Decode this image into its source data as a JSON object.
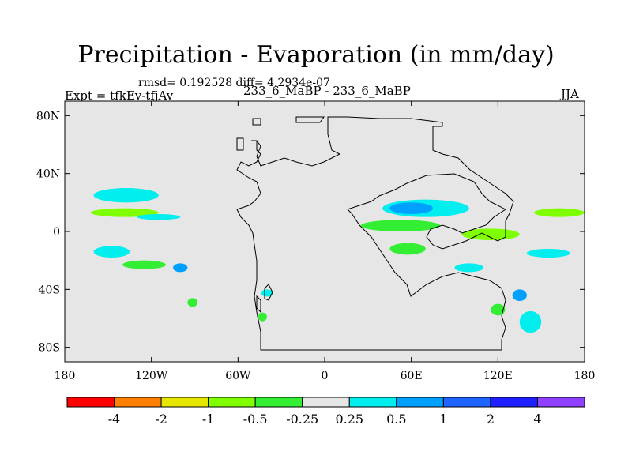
{
  "header": {
    "title": "Precipitation - Evaporation (in mm/day)",
    "stats": "rmsd= 0.192528 diff= 4.2934e-07",
    "left_label": "Expt = tfkEv-tfjAv",
    "center_label": "233_6_MaBP - 233_6_MaBP",
    "right_label": "JJA"
  },
  "chart_data": {
    "type": "heatmap",
    "title": "Precipitation - Evaporation (in mm/day)",
    "x_axis": {
      "range": [
        -180,
        180
      ],
      "ticks": [
        -180,
        -120,
        -60,
        0,
        60,
        120,
        180
      ],
      "tick_labels": [
        "180",
        "120W",
        "60W",
        "0",
        "60E",
        "120E",
        "180"
      ]
    },
    "y_axis": {
      "range": [
        -90,
        90
      ],
      "ticks": [
        80,
        40,
        0,
        -40,
        -80
      ],
      "tick_labels": [
        "80N",
        "40N",
        "0",
        "40S",
        "80S"
      ]
    },
    "background_color": "#e6e6e6",
    "colorbar": {
      "levels": [
        "-4",
        "-2",
        "-1",
        "-0.5",
        "-0.25",
        "0.25",
        "0.5",
        "1",
        "2",
        "4"
      ],
      "colors": [
        "#ff0000",
        "#ff8000",
        "#e6e600",
        "#80ff00",
        "#33ee33",
        "#e6e6e6",
        "#00eeee",
        "#00a0ff",
        "#1e64ff",
        "#2020ff",
        "#9040ff"
      ]
    },
    "regions": [
      {
        "level": "#80ff00",
        "lon": [
          -162,
          -115
        ],
        "lat": [
          10,
          16
        ]
      },
      {
        "level": "#00eeee",
        "lon": [
          -160,
          -115
        ],
        "lat": [
          20,
          30
        ]
      },
      {
        "level": "#00eeee",
        "lon": [
          -130,
          -100
        ],
        "lat": [
          8,
          12
        ]
      },
      {
        "level": "#33ee33",
        "lon": [
          -140,
          -110
        ],
        "lat": [
          -26,
          -20
        ]
      },
      {
        "level": "#00eeee",
        "lon": [
          -160,
          -135
        ],
        "lat": [
          -18,
          -10
        ]
      },
      {
        "level": "#00a0ff",
        "lon": [
          -105,
          -95
        ],
        "lat": [
          -28,
          -22
        ]
      },
      {
        "level": "#33ee33",
        "lon": [
          -95,
          -88
        ],
        "lat": [
          -52,
          -46
        ]
      },
      {
        "level": "#00eeee",
        "lon": [
          -44,
          -36
        ],
        "lat": [
          -45,
          -40
        ]
      },
      {
        "level": "#33ee33",
        "lon": [
          -46,
          -40
        ],
        "lat": [
          -62,
          -56
        ]
      },
      {
        "level": "#00eeee",
        "lon": [
          40,
          100
        ],
        "lat": [
          10,
          22
        ]
      },
      {
        "level": "#00a0ff",
        "lon": [
          45,
          75
        ],
        "lat": [
          12,
          20
        ]
      },
      {
        "level": "#33ee33",
        "lon": [
          25,
          80
        ],
        "lat": [
          0,
          8
        ]
      },
      {
        "level": "#33ee33",
        "lon": [
          45,
          70
        ],
        "lat": [
          -16,
          -8
        ]
      },
      {
        "level": "#80ff00",
        "lon": [
          95,
          135
        ],
        "lat": [
          -6,
          2
        ]
      },
      {
        "level": "#80ff00",
        "lon": [
          145,
          180
        ],
        "lat": [
          10,
          16
        ]
      },
      {
        "level": "#00eeee",
        "lon": [
          140,
          170
        ],
        "lat": [
          -18,
          -12
        ]
      },
      {
        "level": "#00eeee",
        "lon": [
          90,
          110
        ],
        "lat": [
          -28,
          -22
        ]
      },
      {
        "level": "#00a0ff",
        "lon": [
          130,
          140
        ],
        "lat": [
          -48,
          -40
        ]
      },
      {
        "level": "#00eeee",
        "lon": [
          135,
          150
        ],
        "lat": [
          -70,
          -55
        ]
      },
      {
        "level": "#33ee33",
        "lon": [
          115,
          125
        ],
        "lat": [
          -58,
          -50
        ]
      }
    ]
  }
}
